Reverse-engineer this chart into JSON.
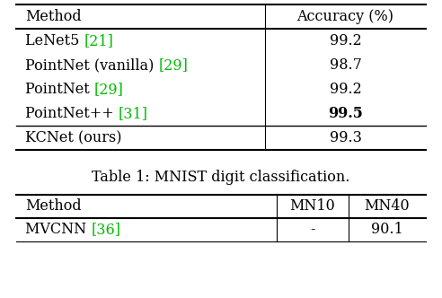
{
  "table1": {
    "title": "Table 1: MNIST digit classification.",
    "header_col1": "Method",
    "header_col2": "Accuracy (%)",
    "rows": [
      {
        "method_parts": [
          {
            "text": "LeNet5 ",
            "color": "#000000"
          },
          {
            "text": "[21]",
            "color": "#00bb00"
          }
        ],
        "value": "99.2",
        "bold_value": false
      },
      {
        "method_parts": [
          {
            "text": "PointNet (vanilla) ",
            "color": "#000000"
          },
          {
            "text": "[29]",
            "color": "#00bb00"
          }
        ],
        "value": "98.7",
        "bold_value": false
      },
      {
        "method_parts": [
          {
            "text": "PointNet ",
            "color": "#000000"
          },
          {
            "text": "[29]",
            "color": "#00bb00"
          }
        ],
        "value": "99.2",
        "bold_value": false
      },
      {
        "method_parts": [
          {
            "text": "PointNet++ ",
            "color": "#000000"
          },
          {
            "text": "[31]",
            "color": "#00bb00"
          }
        ],
        "value": "99.5",
        "bold_value": true
      },
      {
        "method_parts": [
          {
            "text": "KCNet (ours)",
            "color": "#000000"
          }
        ],
        "value": "99.3",
        "bold_value": false
      }
    ]
  },
  "table2": {
    "header_col1": "Method",
    "header_col2": "MN10",
    "header_col3": "MN40",
    "rows": [
      {
        "method_parts": [
          {
            "text": "MVCNN ",
            "color": "#000000"
          },
          {
            "text": "[36]",
            "color": "#00bb00"
          }
        ],
        "val1": "-",
        "val2": "90.1"
      }
    ]
  },
  "bg_color": "#ffffff",
  "text_color": "#000000",
  "green_color": "#00bb00",
  "font_size": 11.5
}
